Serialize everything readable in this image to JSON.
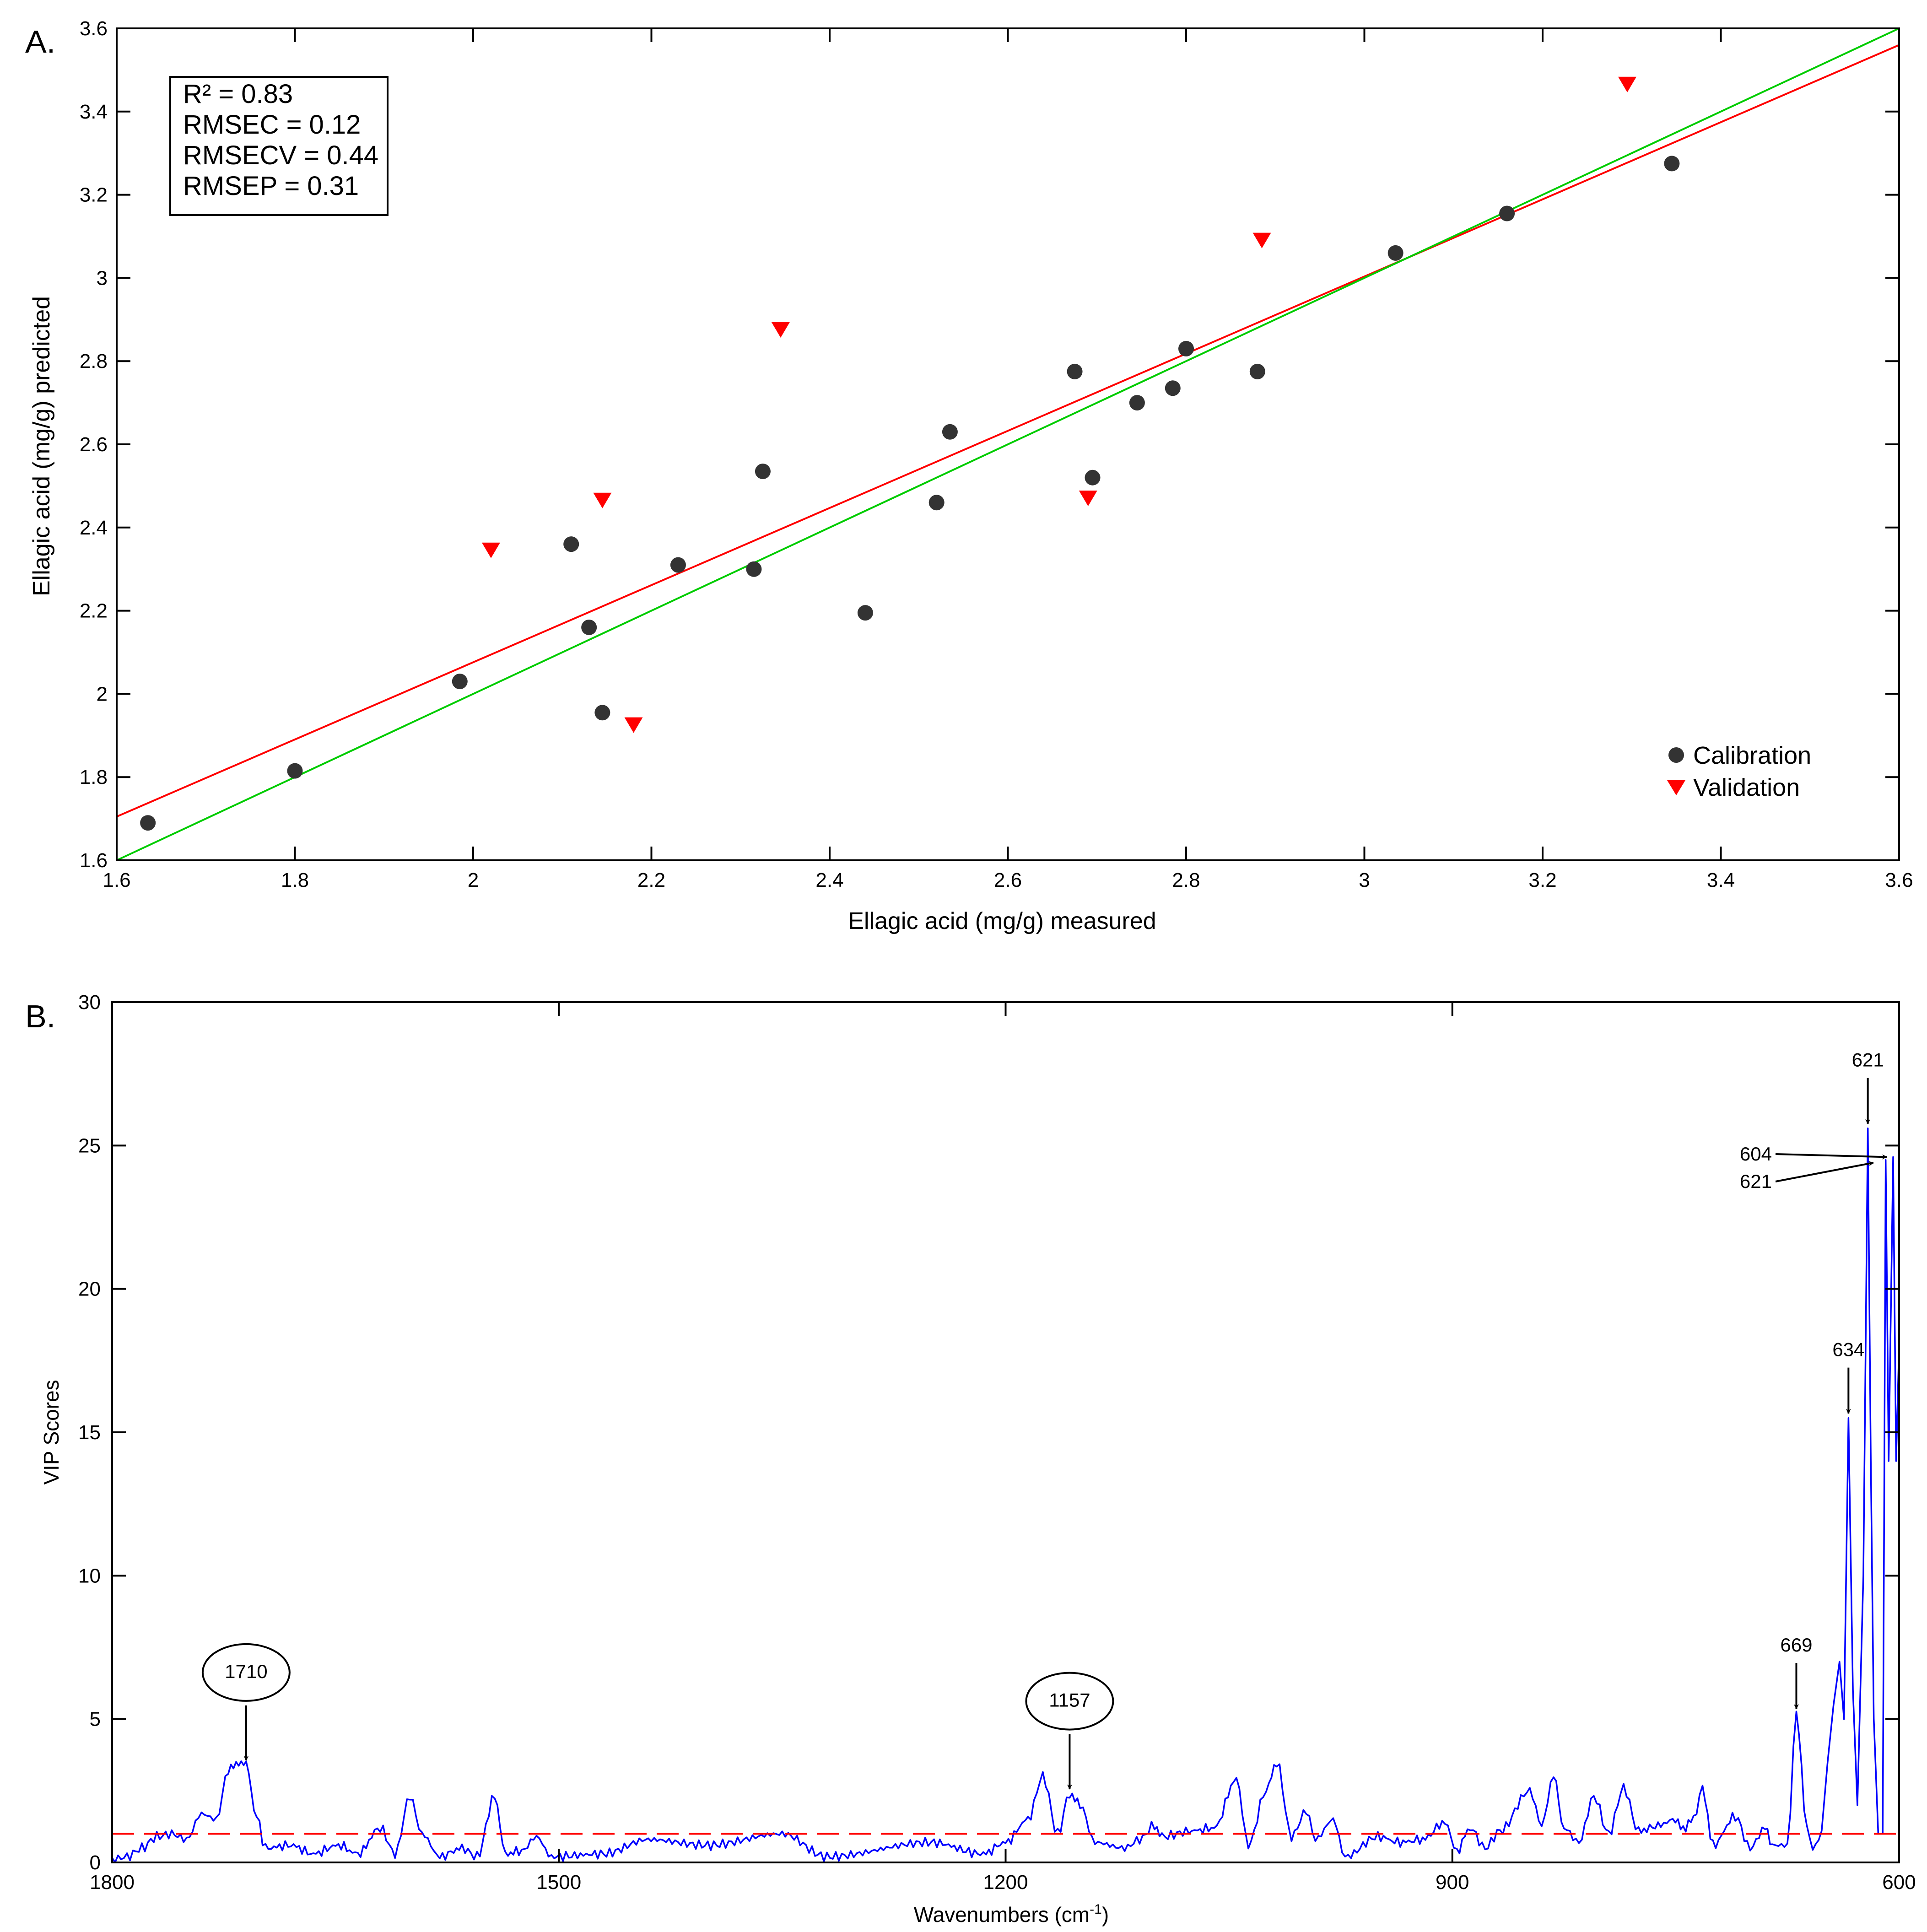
{
  "chart_data": [
    {
      "type": "scatter",
      "panel_label": "A.",
      "title": "",
      "xlabel": "Ellagic acid (mg/g) measured",
      "ylabel": "Ellagic acid (mg/g) predicted",
      "xlim": [
        1.6,
        3.6
      ],
      "ylim": [
        1.6,
        3.6
      ],
      "x_ticks": [
        "1.6",
        "1.8",
        "2",
        "2.2",
        "2.4",
        "2.6",
        "2.8",
        "3",
        "3.2",
        "3.4",
        "3.6"
      ],
      "y_ticks": [
        "1.6",
        "1.8",
        "2",
        "2.2",
        "2.4",
        "2.6",
        "2.8",
        "3",
        "3.2",
        "3.4",
        "3.6"
      ],
      "grid": false,
      "legend_position": "bottom-right",
      "stats": [
        "R² = 0.83",
        "RMSEC = 0.12",
        "RMSECV = 0.44",
        "RMSEP = 0.31"
      ],
      "series": [
        {
          "name": "Calibration",
          "marker": "circle",
          "color": "#333333",
          "points": [
            [
              1.635,
              1.69
            ],
            [
              1.8,
              1.815
            ],
            [
              1.985,
              2.03
            ],
            [
              2.11,
              2.36
            ],
            [
              2.13,
              2.16
            ],
            [
              2.145,
              1.955
            ],
            [
              2.23,
              2.31
            ],
            [
              2.315,
              2.3
            ],
            [
              2.325,
              2.535
            ],
            [
              2.44,
              2.195
            ],
            [
              2.52,
              2.46
            ],
            [
              2.535,
              2.63
            ],
            [
              2.675,
              2.775
            ],
            [
              2.695,
              2.52
            ],
            [
              2.745,
              2.7
            ],
            [
              2.785,
              2.735
            ],
            [
              2.8,
              2.83
            ],
            [
              2.88,
              2.775
            ],
            [
              3.035,
              3.06
            ],
            [
              3.16,
              3.155
            ],
            [
              3.345,
              3.275
            ]
          ]
        },
        {
          "name": "Validation",
          "marker": "triangle-down",
          "color": "#ff0000",
          "points": [
            [
              2.02,
              2.345
            ],
            [
              2.145,
              2.465
            ],
            [
              2.18,
              1.925
            ],
            [
              2.345,
              2.875
            ],
            [
              2.69,
              2.47
            ],
            [
              2.885,
              3.09
            ],
            [
              3.295,
              3.465
            ]
          ]
        }
      ],
      "lines": [
        {
          "color": "#ff0000",
          "x": [
            1.6,
            3.6
          ],
          "y": [
            1.705,
            3.56
          ]
        },
        {
          "color": "#00cc00",
          "x": [
            1.6,
            3.6
          ],
          "y": [
            1.6,
            3.6
          ]
        }
      ]
    },
    {
      "type": "line",
      "panel_label": "B.",
      "title": "",
      "xlabel": "Wavenumbers (cm",
      "xlabel_sup": "-1",
      "xlabel_end": ")",
      "ylabel": "VIP Scores",
      "xlim": [
        1800,
        600
      ],
      "x_reversed": true,
      "ylim": [
        0,
        30
      ],
      "x_ticks": [
        "1800",
        "1500",
        "1200",
        "900",
        "600"
      ],
      "y_ticks": [
        "0",
        "5",
        "10",
        "15",
        "20",
        "25",
        "30"
      ],
      "grid": false,
      "line_color": "#0000ff",
      "threshold": 1,
      "threshold_color": "#ff0000",
      "peaks": [
        [
          1800,
          0.1
        ],
        [
          1790,
          0.2
        ],
        [
          1780,
          0.5
        ],
        [
          1770,
          0.9
        ],
        [
          1760,
          1.0
        ],
        [
          1750,
          0.8
        ],
        [
          1740,
          1.7
        ],
        [
          1730,
          1.5
        ],
        [
          1722,
          3.2
        ],
        [
          1715,
          3.5
        ],
        [
          1710,
          3.4
        ],
        [
          1703,
          1.6
        ],
        [
          1697,
          0.5
        ],
        [
          1680,
          0.6
        ],
        [
          1665,
          0.3
        ],
        [
          1648,
          0.6
        ],
        [
          1635,
          0.3
        ],
        [
          1620,
          1.2
        ],
        [
          1610,
          0.3
        ],
        [
          1600,
          2.3
        ],
        [
          1592,
          1.0
        ],
        [
          1580,
          0.2
        ],
        [
          1565,
          0.5
        ],
        [
          1555,
          0.2
        ],
        [
          1543,
          2.3
        ],
        [
          1536,
          0.3
        ],
        [
          1525,
          0.4
        ],
        [
          1515,
          0.9
        ],
        [
          1505,
          0.2
        ],
        [
          1470,
          0.3
        ],
        [
          1440,
          0.8
        ],
        [
          1400,
          0.6
        ],
        [
          1350,
          1.0
        ],
        [
          1320,
          0.2
        ],
        [
          1250,
          0.7
        ],
        [
          1215,
          0.3
        ],
        [
          1200,
          0.7
        ],
        [
          1185,
          1.5
        ],
        [
          1175,
          3.0
        ],
        [
          1165,
          1.0
        ],
        [
          1157,
          2.4
        ],
        [
          1150,
          2.0
        ],
        [
          1140,
          0.7
        ],
        [
          1120,
          0.5
        ],
        [
          1110,
          0.8
        ],
        [
          1100,
          1.3
        ],
        [
          1095,
          0.9
        ],
        [
          1075,
          1.1
        ],
        [
          1060,
          1.2
        ],
        [
          1045,
          2.9
        ],
        [
          1037,
          0.6
        ],
        [
          1025,
          2.5
        ],
        [
          1018,
          3.5
        ],
        [
          1008,
          0.9
        ],
        [
          998,
          1.8
        ],
        [
          992,
          0.8
        ],
        [
          980,
          1.5
        ],
        [
          972,
          0.2
        ],
        [
          950,
          0.9
        ],
        [
          935,
          0.7
        ],
        [
          920,
          0.8
        ],
        [
          905,
          1.4
        ],
        [
          897,
          0.4
        ],
        [
          888,
          1.2
        ],
        [
          878,
          0.5
        ],
        [
          868,
          1.1
        ],
        [
          848,
          2.5
        ],
        [
          840,
          1.3
        ],
        [
          832,
          3.0
        ],
        [
          825,
          1.2
        ],
        [
          815,
          0.7
        ],
        [
          805,
          2.3
        ],
        [
          795,
          1.0
        ],
        [
          785,
          2.6
        ],
        [
          775,
          1.1
        ],
        [
          760,
          1.3
        ],
        [
          752,
          1.5
        ],
        [
          745,
          1.2
        ],
        [
          738,
          1.5
        ],
        [
          732,
          2.6
        ],
        [
          725,
          0.6
        ],
        [
          710,
          1.6
        ],
        [
          700,
          0.5
        ],
        [
          690,
          1.2
        ],
        [
          685,
          0.6
        ],
        [
          675,
          0.6
        ],
        [
          669,
          5.2
        ],
        [
          662,
          1.3
        ],
        [
          658,
          0.4
        ],
        [
          652,
          1.1
        ],
        [
          648,
          3.5
        ],
        [
          644,
          5.5
        ],
        [
          640,
          7.0
        ],
        [
          637,
          5.0
        ],
        [
          634,
          15.5
        ],
        [
          631,
          6.0
        ],
        [
          628,
          2.0
        ],
        [
          624,
          10.0
        ],
        [
          621,
          25.6
        ],
        [
          619,
          14.0
        ],
        [
          617,
          5.0
        ],
        [
          614,
          1.0
        ],
        [
          611,
          1.0
        ],
        [
          609,
          24.5
        ],
        [
          607,
          14.0
        ],
        [
          604,
          24.6
        ],
        [
          602,
          14.0
        ],
        [
          600,
          18.0
        ]
      ],
      "annotations": [
        {
          "text": "1710",
          "x": 1710,
          "y": 3.4,
          "circled": true
        },
        {
          "text": "1157",
          "x": 1157,
          "y": 2.4,
          "circled": true
        },
        {
          "text": "669",
          "x": 669,
          "y": 5.2,
          "circled": false
        },
        {
          "text": "634",
          "x": 634,
          "y": 15.5,
          "circled": false
        },
        {
          "text": "621",
          "x": 621,
          "y": 25.6,
          "circled": false
        },
        {
          "text": "604",
          "x": 604,
          "y": 24.6,
          "circled": false
        },
        {
          "text": "621",
          "x": 613,
          "y": 24.4,
          "circled": false
        }
      ]
    }
  ]
}
